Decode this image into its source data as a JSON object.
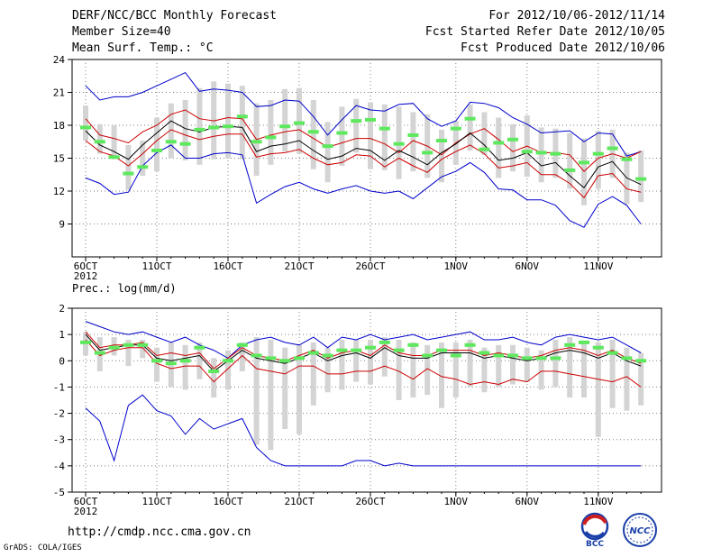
{
  "header": {
    "title": "DERF/NCC/BCC Monthly Forecast",
    "member_size": "Member Size=40",
    "variable": "Mean Surf. Temp.: °C",
    "period": "For 2012/10/06-2012/11/14",
    "fcst_started": "Fcst Started Refer Date 2012/10/05",
    "fcst_produced": "Fcst Produced Date 2012/10/06"
  },
  "footer": {
    "url": "http://cmdp.ncc.cma.gov.cn",
    "grads_credit": "GrADS: COLA/IGES",
    "logo_bcc_text": "BCC",
    "logo_ncc_text": "NCC"
  },
  "colors": {
    "envelope": "#0000cc",
    "spread": "#cc0000",
    "mean": "#000000",
    "box": "#d4d4d4",
    "median": "#5ee85e",
    "grid": "#808080"
  },
  "chart_data": [
    {
      "type": "line",
      "title": "Mean Surf. Temp.: °C",
      "days": 40,
      "start_date": "2012/10/06",
      "x_tick_labels": [
        "6OCT",
        "11OCT",
        "16OCT",
        "21OCT",
        "26OCT",
        "1NOV",
        "6NOV",
        "11NOV"
      ],
      "x_tick_days": [
        0,
        5,
        10,
        15,
        20,
        26,
        31,
        36
      ],
      "year_label": "2012",
      "ylim": [
        6,
        24
      ],
      "y_ticks": [
        9,
        12,
        15,
        18,
        21,
        24
      ],
      "series": [
        {
          "name": "max",
          "color": "#0000cc",
          "values": [
            21.6,
            20.3,
            20.6,
            20.6,
            21.0,
            21.6,
            22.2,
            22.8,
            21.1,
            21.3,
            21.2,
            21.0,
            19.7,
            19.8,
            20.3,
            20.2,
            18.8,
            17.1,
            18.5,
            19.8,
            19.4,
            19.3,
            19.9,
            20.0,
            18.6,
            17.9,
            18.4,
            20.1,
            20.0,
            19.6,
            18.7,
            18.1,
            17.3,
            17.4,
            17.5,
            16.5,
            17.3,
            17.2,
            15.2,
            15.6
          ]
        },
        {
          "name": "upper",
          "color": "#cc0000",
          "values": [
            18.6,
            17.1,
            16.8,
            16.4,
            17.4,
            18.0,
            19.0,
            19.4,
            18.6,
            18.4,
            18.7,
            18.6,
            16.7,
            17.1,
            17.4,
            17.6,
            16.8,
            16.0,
            16.4,
            16.8,
            16.8,
            16.3,
            15.5,
            16.6,
            16.1,
            15.3,
            16.4,
            17.2,
            17.7,
            16.7,
            15.6,
            16.1,
            15.5,
            15.5,
            15.3,
            13.8,
            15.0,
            15.4,
            15.0,
            15.6
          ]
        },
        {
          "name": "mean",
          "color": "#000000",
          "values": [
            17.5,
            16.2,
            15.6,
            14.9,
            16.2,
            17.3,
            18.4,
            17.7,
            17.4,
            17.8,
            17.9,
            17.8,
            15.6,
            16.1,
            16.3,
            16.6,
            15.7,
            14.9,
            15.2,
            15.9,
            15.7,
            14.8,
            15.7,
            15.1,
            14.4,
            15.5,
            16.3,
            17.3,
            16.2,
            14.8,
            15.0,
            15.5,
            14.3,
            14.6,
            13.4,
            12.3,
            14.2,
            14.7,
            13.2,
            12.6
          ]
        },
        {
          "name": "lower",
          "color": "#cc0000",
          "values": [
            16.6,
            15.6,
            15.2,
            14.3,
            15.4,
            16.6,
            17.6,
            17.1,
            16.7,
            17.0,
            17.2,
            17.2,
            15.1,
            15.4,
            15.5,
            15.8,
            15.0,
            14.4,
            14.6,
            15.3,
            15.2,
            14.2,
            15.0,
            14.3,
            13.7,
            14.9,
            15.6,
            16.2,
            15.4,
            14.1,
            14.3,
            14.6,
            13.5,
            13.5,
            12.7,
            11.4,
            13.4,
            13.6,
            12.2,
            11.9
          ]
        },
        {
          "name": "min",
          "color": "#0000cc",
          "values": [
            13.2,
            12.7,
            11.7,
            11.9,
            14.3,
            15.5,
            16.2,
            15.0,
            15.0,
            15.4,
            15.5,
            15.3,
            10.9,
            11.7,
            12.4,
            12.8,
            12.2,
            11.8,
            12.2,
            12.5,
            12.0,
            11.8,
            12.0,
            11.3,
            12.3,
            13.3,
            13.8,
            14.6,
            13.7,
            12.2,
            12.1,
            11.2,
            11.2,
            10.7,
            9.3,
            8.7,
            10.8,
            11.5,
            10.7,
            9.0
          ]
        }
      ],
      "box_low": [
        16.6,
        15.4,
        14.9,
        12.1,
        13.4,
        13.8,
        15.0,
        14.8,
        14.4,
        14.9,
        15.0,
        14.9,
        13.4,
        14.4,
        15.6,
        15.4,
        14.0,
        12.8,
        14.3,
        15.5,
        14.0,
        13.9,
        13.1,
        13.8,
        13.2,
        12.8,
        14.4,
        15.7,
        15.3,
        13.2,
        13.8,
        13.3,
        12.8,
        13.2,
        12.2,
        10.7,
        12.2,
        13.2,
        10.8,
        11.0
      ],
      "box_high": [
        19.8,
        18.1,
        18.0,
        16.2,
        16.6,
        18.7,
        20.0,
        20.3,
        21.4,
        22.0,
        21.8,
        21.6,
        20.0,
        20.3,
        21.3,
        21.4,
        20.3,
        18.3,
        19.7,
        20.4,
        20.1,
        19.9,
        19.7,
        19.2,
        19.0,
        17.6,
        18.4,
        19.9,
        19.2,
        18.7,
        18.1,
        18.9,
        17.8,
        17.7,
        17.3,
        16.8,
        17.5,
        17.6,
        15.5,
        15.7
      ],
      "medians": [
        17.8,
        16.5,
        15.1,
        13.6,
        14.2,
        15.7,
        16.5,
        16.3,
        17.6,
        17.8,
        17.9,
        18.8,
        16.5,
        16.9,
        17.9,
        18.2,
        17.4,
        16.1,
        17.3,
        18.4,
        18.5,
        17.7,
        16.3,
        17.1,
        15.5,
        16.6,
        17.7,
        18.6,
        15.8,
        16.4,
        16.7,
        15.6,
        15.5,
        15.4,
        13.9,
        14.6,
        15.4,
        15.9,
        14.9,
        13.1
      ]
    },
    {
      "type": "line",
      "title": "Prec.: log(mm/d)",
      "days": 40,
      "start_date": "2012/10/06",
      "x_tick_labels": [
        "6OCT",
        "11OCT",
        "16OCT",
        "21OCT",
        "26OCT",
        "1NOV",
        "6NOV",
        "11NOV"
      ],
      "x_tick_days": [
        0,
        5,
        10,
        15,
        20,
        26,
        31,
        36
      ],
      "year_label": "2012",
      "ylim": [
        -5,
        2
      ],
      "y_ticks": [
        -5,
        -4,
        -3,
        -2,
        -1,
        0,
        1,
        2
      ],
      "series": [
        {
          "name": "max",
          "color": "#0000cc",
          "values": [
            1.5,
            1.3,
            1.1,
            1.0,
            1.1,
            0.9,
            0.7,
            0.9,
            0.6,
            0.4,
            0.1,
            0.6,
            0.8,
            0.9,
            0.7,
            0.6,
            0.9,
            0.5,
            0.9,
            0.8,
            1.0,
            0.8,
            0.9,
            1.0,
            0.8,
            0.9,
            1.0,
            1.1,
            0.8,
            0.8,
            0.9,
            0.7,
            0.6,
            0.9,
            1.0,
            0.9,
            0.8,
            0.9,
            0.6,
            0.3
          ]
        },
        {
          "name": "upper",
          "color": "#cc0000",
          "values": [
            1.1,
            0.5,
            0.6,
            0.6,
            0.7,
            0.2,
            0.3,
            0.2,
            0.3,
            -0.3,
            0.1,
            0.5,
            0.2,
            0.1,
            0.0,
            0.2,
            0.4,
            0.1,
            0.3,
            0.4,
            0.2,
            0.6,
            0.3,
            0.2,
            0.2,
            0.4,
            0.4,
            0.4,
            0.2,
            0.3,
            0.2,
            0.1,
            0.2,
            0.4,
            0.5,
            0.4,
            0.2,
            0.4,
            0.1,
            -0.1
          ]
        },
        {
          "name": "mean",
          "color": "#000000",
          "values": [
            1.0,
            0.4,
            0.5,
            0.6,
            0.6,
            0.1,
            0.0,
            0.1,
            0.2,
            -0.4,
            0.0,
            0.4,
            0.1,
            0.0,
            -0.1,
            0.1,
            0.3,
            0.0,
            0.2,
            0.3,
            0.1,
            0.5,
            0.2,
            0.1,
            0.1,
            0.3,
            0.3,
            0.3,
            0.1,
            0.2,
            0.1,
            0.0,
            0.1,
            0.3,
            0.4,
            0.3,
            0.1,
            0.3,
            0.0,
            -0.2
          ]
        },
        {
          "name": "lower",
          "color": "#cc0000",
          "values": [
            0.8,
            0.2,
            0.4,
            0.5,
            0.5,
            -0.1,
            -0.3,
            -0.2,
            -0.2,
            -0.8,
            -0.3,
            0.2,
            -0.3,
            -0.4,
            -0.5,
            -0.2,
            -0.2,
            -0.5,
            -0.5,
            -0.4,
            -0.4,
            -0.2,
            -0.4,
            -0.7,
            -0.3,
            -0.6,
            -0.7,
            -0.9,
            -0.8,
            -0.9,
            -0.7,
            -0.8,
            -0.4,
            -0.4,
            -0.5,
            -0.6,
            -0.7,
            -0.8,
            -0.6,
            -1.0
          ]
        },
        {
          "name": "min",
          "color": "#0000cc",
          "values": [
            -1.8,
            -2.3,
            -3.8,
            -1.7,
            -1.3,
            -1.9,
            -2.1,
            -2.8,
            -2.2,
            -2.6,
            -2.4,
            -2.2,
            -3.3,
            -3.8,
            -4.0,
            -4.0,
            -4.0,
            -4.0,
            -4.0,
            -3.8,
            -3.8,
            -4.0,
            -3.9,
            -4.0,
            -4.0,
            -4.0,
            -4.0,
            -4.0,
            -4.0,
            -4.0,
            -4.0,
            -4.0,
            -4.0,
            -4.0,
            -4.0,
            -4.0,
            -4.0,
            -4.0,
            -4.0,
            -4.0
          ]
        }
      ],
      "box_low": [
        0.2,
        -0.4,
        0.2,
        -0.2,
        0.1,
        -0.8,
        -1.0,
        -1.1,
        -0.7,
        -1.4,
        -1.1,
        -0.4,
        -3.2,
        -3.4,
        -2.6,
        -2.8,
        -1.7,
        -1.2,
        -1.1,
        -0.8,
        -0.9,
        -0.6,
        -1.5,
        -1.4,
        -1.3,
        -1.8,
        -1.4,
        -1.0,
        -1.2,
        -1.0,
        -0.9,
        -0.8,
        -1.1,
        -1.0,
        -1.4,
        -1.4,
        -2.9,
        -1.8,
        -1.9,
        -1.7
      ],
      "box_high": [
        1.1,
        0.9,
        0.9,
        0.8,
        0.8,
        0.5,
        0.7,
        0.6,
        0.7,
        0.1,
        0.4,
        0.7,
        0.9,
        0.8,
        0.5,
        0.6,
        0.7,
        0.5,
        0.8,
        0.8,
        0.8,
        0.9,
        0.8,
        0.7,
        0.6,
        0.7,
        0.7,
        0.8,
        0.5,
        0.6,
        0.6,
        0.5,
        0.4,
        0.8,
        0.9,
        0.7,
        0.7,
        0.8,
        0.5,
        0.3
      ],
      "medians": [
        0.7,
        0.3,
        0.5,
        0.6,
        0.6,
        0.0,
        -0.1,
        0.0,
        0.5,
        -0.4,
        0.0,
        0.6,
        0.2,
        0.1,
        0.0,
        0.1,
        0.3,
        0.2,
        0.4,
        0.4,
        0.5,
        0.7,
        0.4,
        0.6,
        0.2,
        0.4,
        0.2,
        0.6,
        0.3,
        0.2,
        0.2,
        0.1,
        0.1,
        0.1,
        0.6,
        0.7,
        0.5,
        0.3,
        0.1,
        0.0
      ]
    }
  ]
}
